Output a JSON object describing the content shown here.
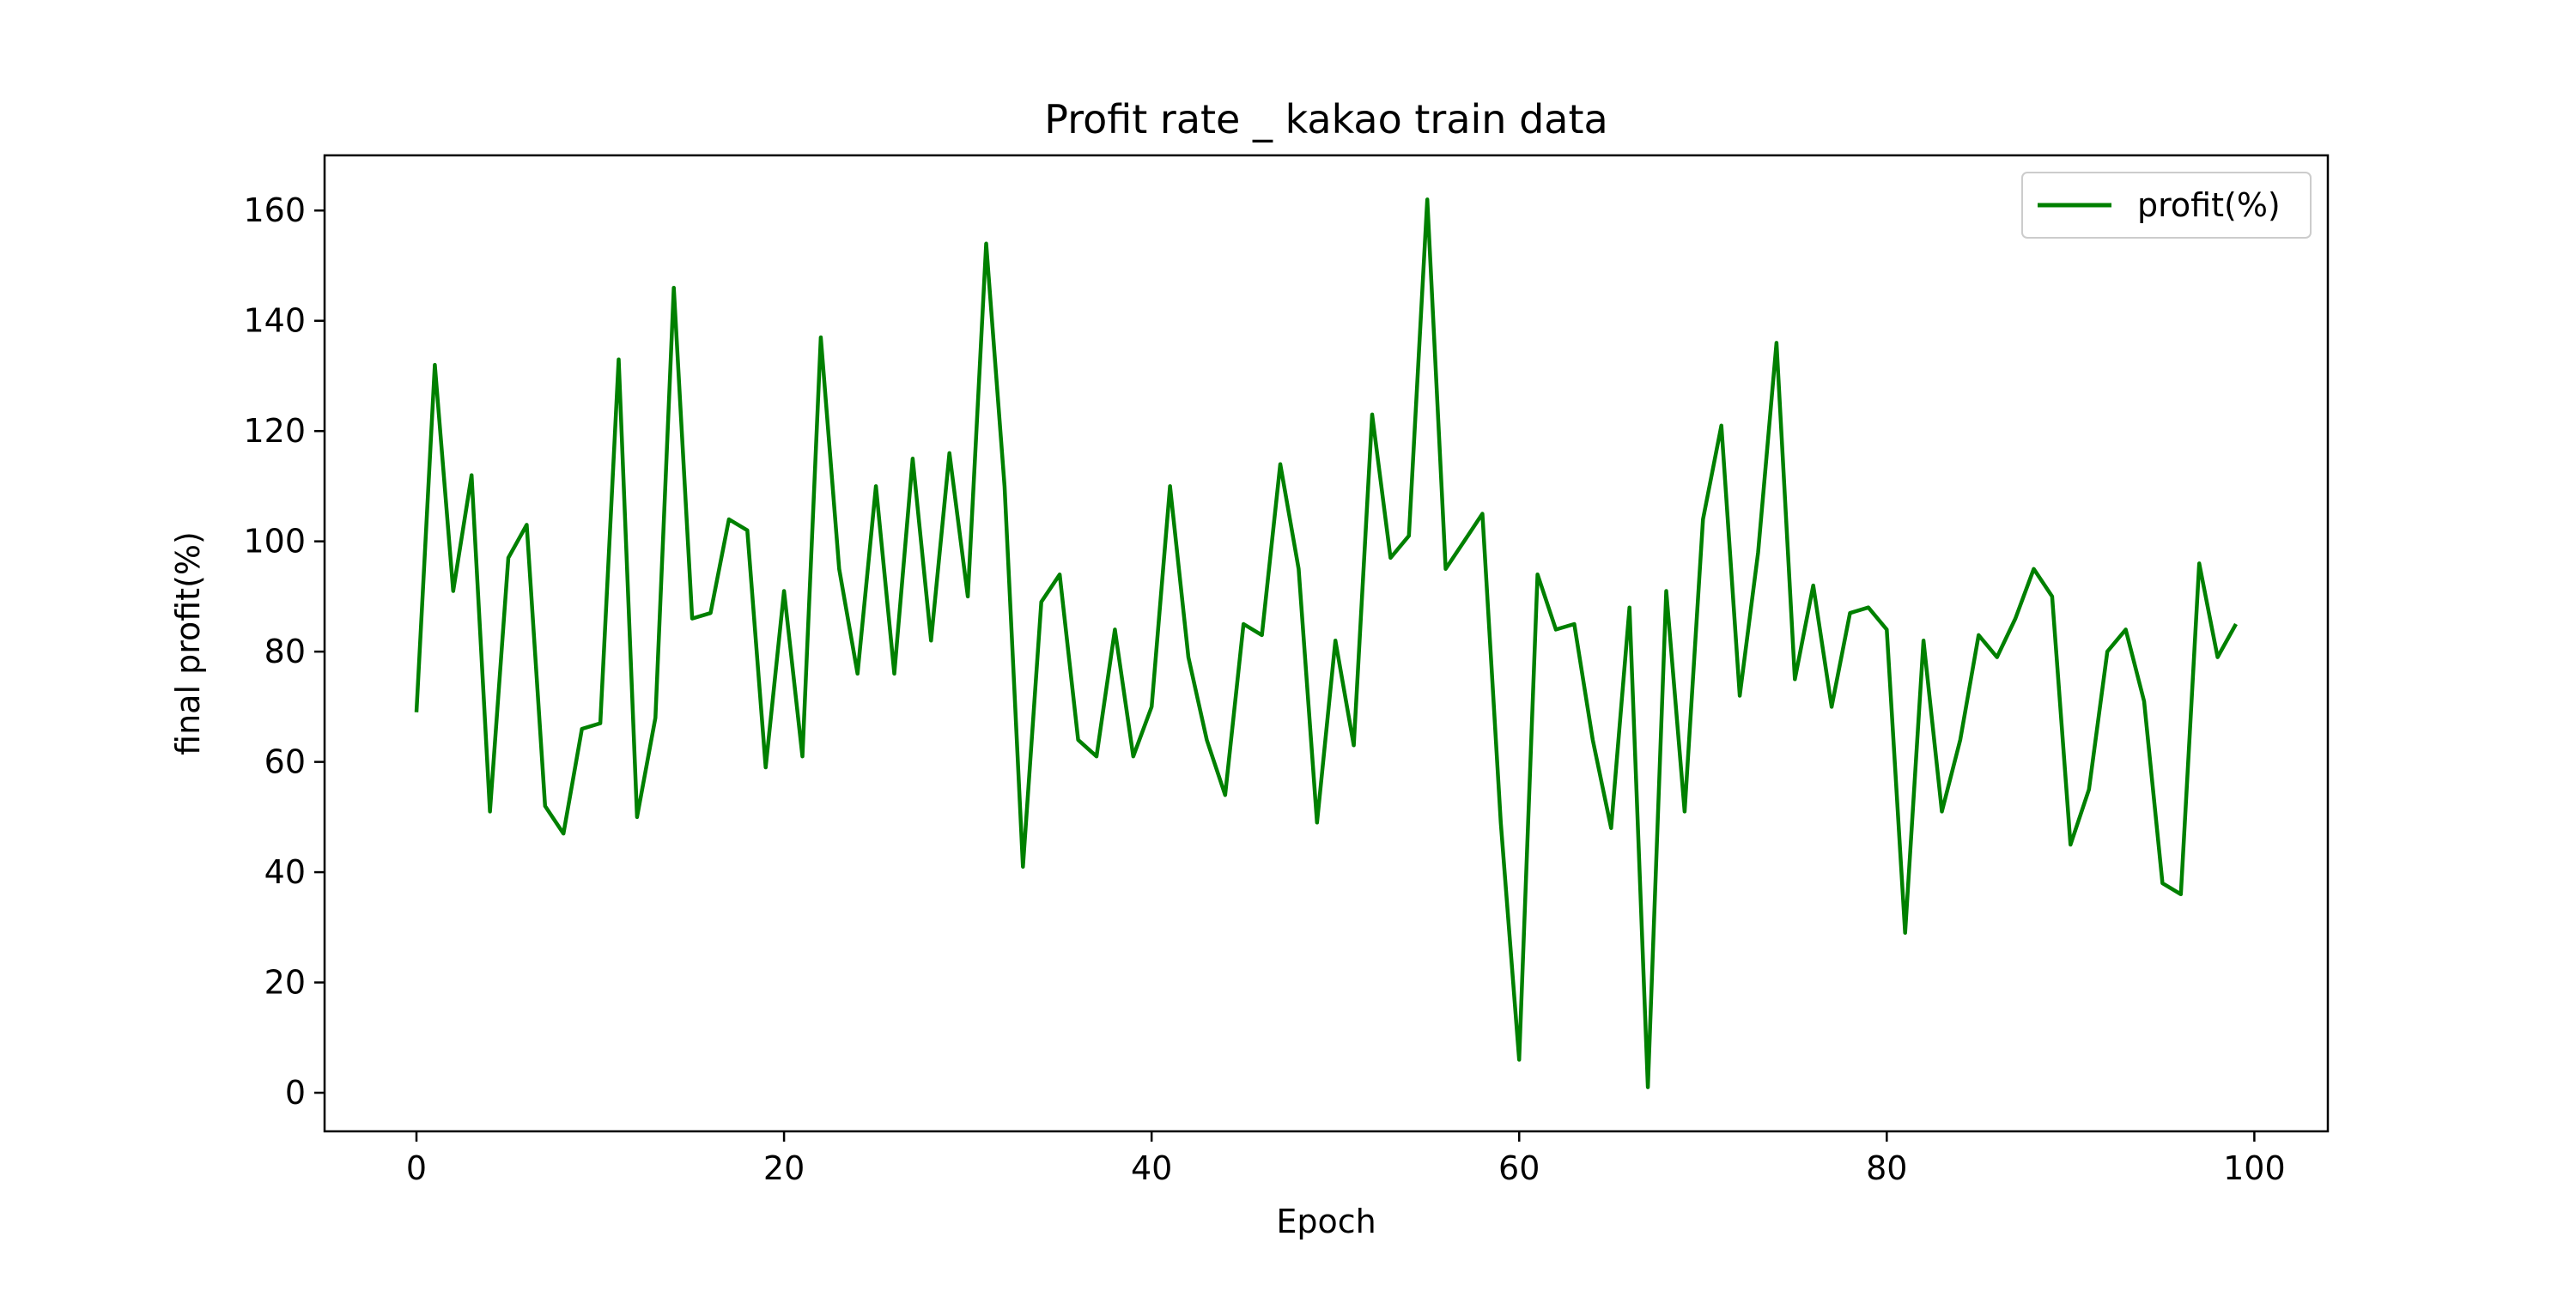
{
  "chart_data": {
    "type": "line",
    "title": "Profit rate _ kakao train data",
    "xlabel": "Epoch",
    "ylabel": "final profit(%)",
    "xlim": [
      -5,
      104
    ],
    "ylim": [
      -7,
      170
    ],
    "xticks": [
      0,
      20,
      40,
      60,
      80,
      100
    ],
    "yticks": [
      0,
      20,
      40,
      60,
      80,
      100,
      120,
      140,
      160
    ],
    "grid": false,
    "legend_position": "top-right",
    "series": [
      {
        "name": "profit(%)",
        "color": "#008000",
        "x": [
          0,
          1,
          2,
          3,
          4,
          5,
          6,
          7,
          8,
          9,
          10,
          11,
          12,
          13,
          14,
          15,
          16,
          17,
          18,
          19,
          20,
          21,
          22,
          23,
          24,
          25,
          26,
          27,
          28,
          29,
          30,
          31,
          32,
          33,
          34,
          35,
          36,
          37,
          38,
          39,
          40,
          41,
          42,
          43,
          44,
          45,
          46,
          47,
          48,
          49,
          50,
          51,
          52,
          53,
          54,
          55,
          56,
          57,
          58,
          59,
          60,
          61,
          62,
          63,
          64,
          65,
          66,
          67,
          68,
          69,
          70,
          71,
          72,
          73,
          74,
          75,
          76,
          77,
          78,
          79,
          80,
          81,
          82,
          83,
          84,
          85,
          86,
          87,
          88,
          89,
          90,
          91,
          92,
          93,
          94,
          95,
          96,
          97,
          98,
          99
        ],
        "y": [
          69,
          132,
          91,
          112,
          51,
          97,
          103,
          52,
          47,
          66,
          67,
          133,
          50,
          68,
          146,
          86,
          87,
          104,
          102,
          59,
          91,
          61,
          137,
          95,
          76,
          110,
          76,
          115,
          82,
          116,
          90,
          154,
          110,
          41,
          89,
          94,
          64,
          61,
          84,
          61,
          70,
          110,
          79,
          64,
          54,
          85,
          83,
          114,
          95,
          49,
          82,
          63,
          123,
          97,
          101,
          162,
          95,
          100,
          105,
          49,
          6,
          94,
          84,
          85,
          64,
          48,
          88,
          1,
          91,
          51,
          104,
          121,
          72,
          98,
          136,
          75,
          92,
          70,
          87,
          88,
          84,
          29,
          82,
          51,
          64,
          83,
          79,
          86,
          95,
          90,
          45,
          55,
          80,
          84,
          71,
          38,
          36,
          96,
          79,
          85
        ]
      }
    ]
  }
}
